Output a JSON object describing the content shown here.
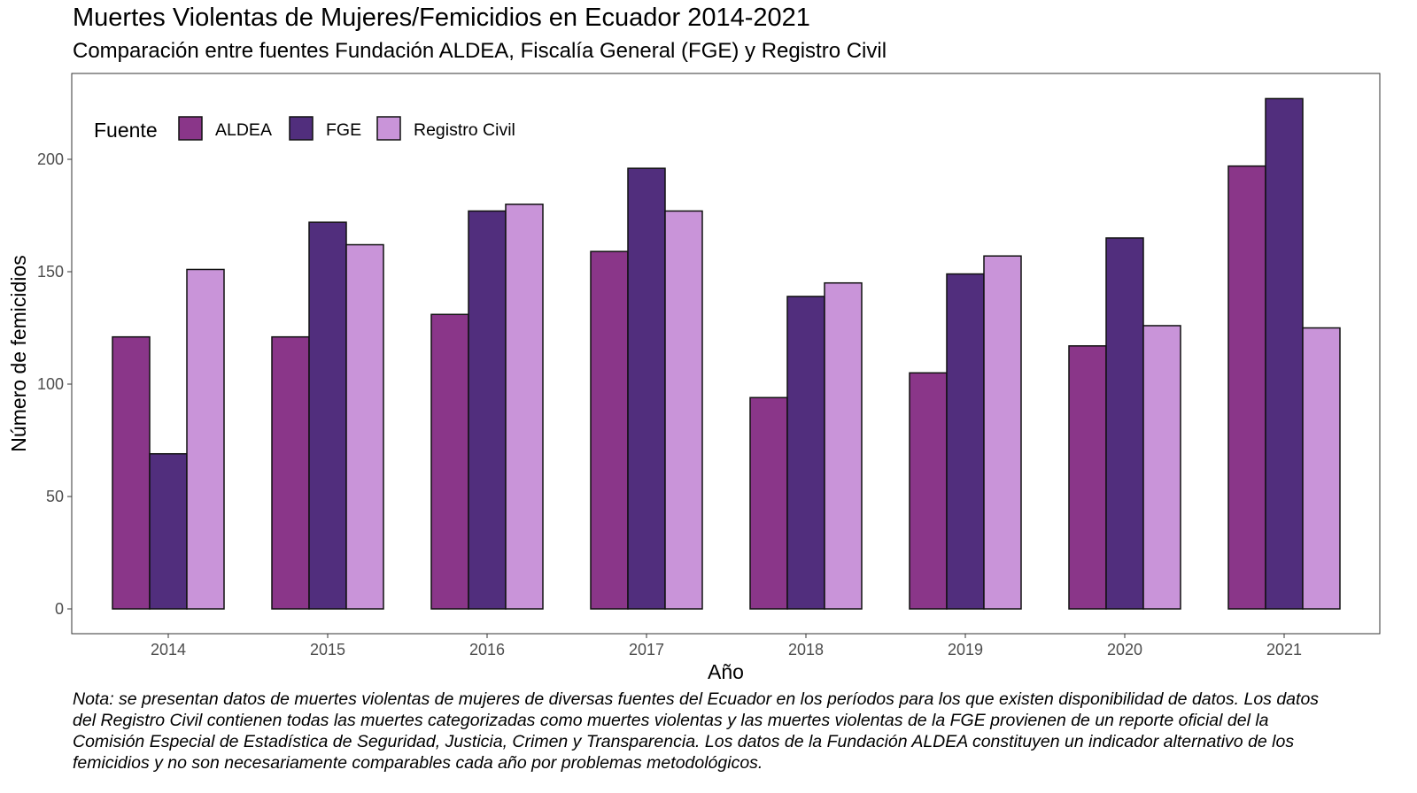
{
  "title": "Muertes Violentas de Mujeres/Femicidios en Ecuador 2014-2021",
  "subtitle": "Comparación entre fuentes Fundación ALDEA, Fiscalía General (FGE) y Registro Civil",
  "note": "Nota: se presentan datos de muertes violentas de mujeres de diversas fuentes del Ecuador en los períodos para los que existen disponibilidad de datos. Los datos\ndel Registro Civil contienen todas las muertes categorizadas como muertes violentas y las muertes violentas de la FGE provienen de un reporte oficial del la\nComisión Especial de Estadística de Seguridad, Justicia, Crimen y Transparencia. Los datos de la Fundación ALDEA constituyen un indicador alternativo de los\nfemicidios y no son necesariamente comparables cada año por problemas metodológicos.",
  "chart_data": {
    "type": "bar",
    "title": "Muertes Violentas de Mujeres/Femicidios en Ecuador 2014-2021",
    "subtitle": "Comparación entre fuentes Fundación ALDEA, Fiscalía General (FGE) y Registro Civil",
    "xlabel": "Año",
    "ylabel": "Número de femicidios",
    "categories": [
      "2014",
      "2015",
      "2016",
      "2017",
      "2018",
      "2019",
      "2020",
      "2021"
    ],
    "ylim": [
      0,
      225
    ],
    "yticks": [
      0,
      50,
      100,
      150,
      200
    ],
    "legend_title": "Fuente",
    "legend_position": "top-left",
    "grid": false,
    "series": [
      {
        "name": "ALDEA",
        "color": "#8a3689",
        "values": [
          121,
          121,
          131,
          159,
          94,
          105,
          117,
          197
        ]
      },
      {
        "name": "FGE",
        "color": "#512e7d",
        "values": [
          69,
          172,
          177,
          196,
          139,
          149,
          165,
          227
        ]
      },
      {
        "name": "Registro Civil",
        "color": "#c994d9",
        "values": [
          151,
          162,
          180,
          177,
          145,
          157,
          126,
          125
        ]
      }
    ]
  }
}
